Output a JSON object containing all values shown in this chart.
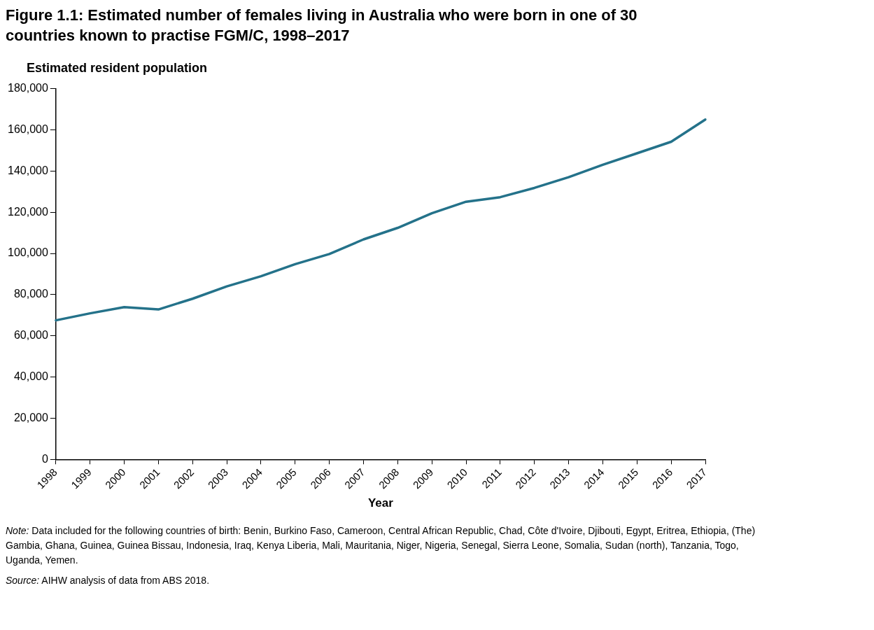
{
  "chart_data": {
    "type": "line",
    "title": "Figure 1.1: Estimated number of females living in Australia who were born in one of 30 countries known to practise FGM/C, 1998–2017",
    "xlabel": "Year",
    "ylabel": "Estimated resident population",
    "categories": [
      "1998",
      "1999",
      "2000",
      "2001",
      "2002",
      "2003",
      "2004",
      "2005",
      "2006",
      "2007",
      "2008",
      "2009",
      "2010",
      "2011",
      "2012",
      "2013",
      "2014",
      "2015",
      "2016",
      "2017"
    ],
    "series": [
      {
        "color": "#24728a",
        "values": [
          67500,
          70900,
          73900,
          72800,
          78000,
          84000,
          88900,
          94800,
          99700,
          106800,
          112400,
          119500,
          125100,
          127300,
          131800,
          137000,
          143000,
          148600,
          154200,
          165000
        ]
      }
    ],
    "ylim": [
      0,
      180000
    ],
    "yticks": [
      0,
      {
        "value": 20000,
        "label": "20,000"
      },
      {
        "value": 40000,
        "label": "40,000"
      },
      {
        "value": 60000,
        "label": "60,000"
      },
      {
        "value": 80000,
        "label": "80,000"
      },
      {
        "value": 100000,
        "label": "100,000"
      },
      {
        "value": 120000,
        "label": "120,000"
      },
      {
        "value": 140000,
        "label": "140,000"
      },
      {
        "value": 160000,
        "label": "160,000"
      },
      {
        "value": 180000,
        "label": "180,000"
      }
    ],
    "grid": false,
    "legend": false,
    "marker": "none",
    "line_style": "solid",
    "annotations": [
      "Note: Data included for the following countries of birth: Benin, Burkino Faso, Cameroon, Central African Republic, Chad, Côte d'Ivoire, Djibouti, Egypt, Eritrea, Ethiopia, (The) Gambia, Ghana, Guinea, Guinea Bissau, Indonesia, Iraq, Kenya Liberia, Mali, Mauritania, Niger, Nigeria, Senegal, Sierra Leone, Somalia, Sudan (north), Tanzania, Togo, Uganda, Yemen.",
      "Source: AIHW analysis of data from ABS 2018."
    ]
  }
}
